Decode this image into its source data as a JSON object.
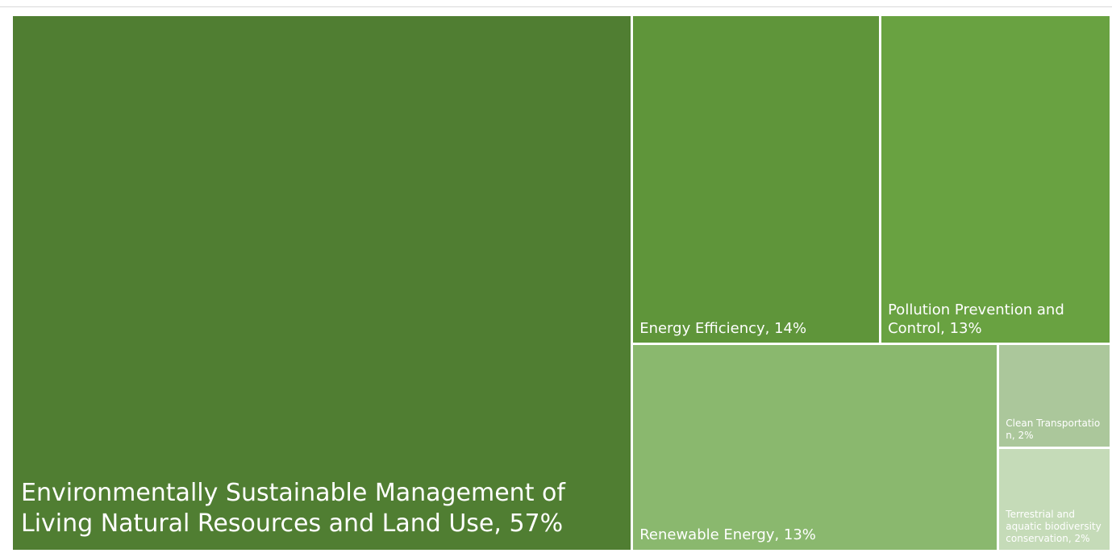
{
  "chart_data": {
    "type": "treemap",
    "categories": [
      "Environmentally Sustainable Management of Living Natural Resources and Land Use",
      "Energy Efficiency",
      "Pollution Prevention and Control",
      "Renewable Energy",
      "Clean Transportation",
      "Terrestrial and aquatic biodiversity conservation"
    ],
    "values": [
      57,
      14,
      13,
      13,
      2,
      2
    ],
    "value_labels": [
      "Environmentally Sustainable Management of Living Natural Resources and Land Use, 57%",
      "Energy Efficiency, 14%",
      "Pollution Prevention and Control, 13%",
      "Renewable Energy, 13%",
      "Clean Transportatio n, 2%",
      "Terrestrial and aquatic biodiversity conservation, 2%"
    ],
    "colors": [
      "#507e32",
      "#5f953a",
      "#69a241",
      "#8ab86e",
      "#abc79b",
      "#c5dbb8"
    ]
  }
}
